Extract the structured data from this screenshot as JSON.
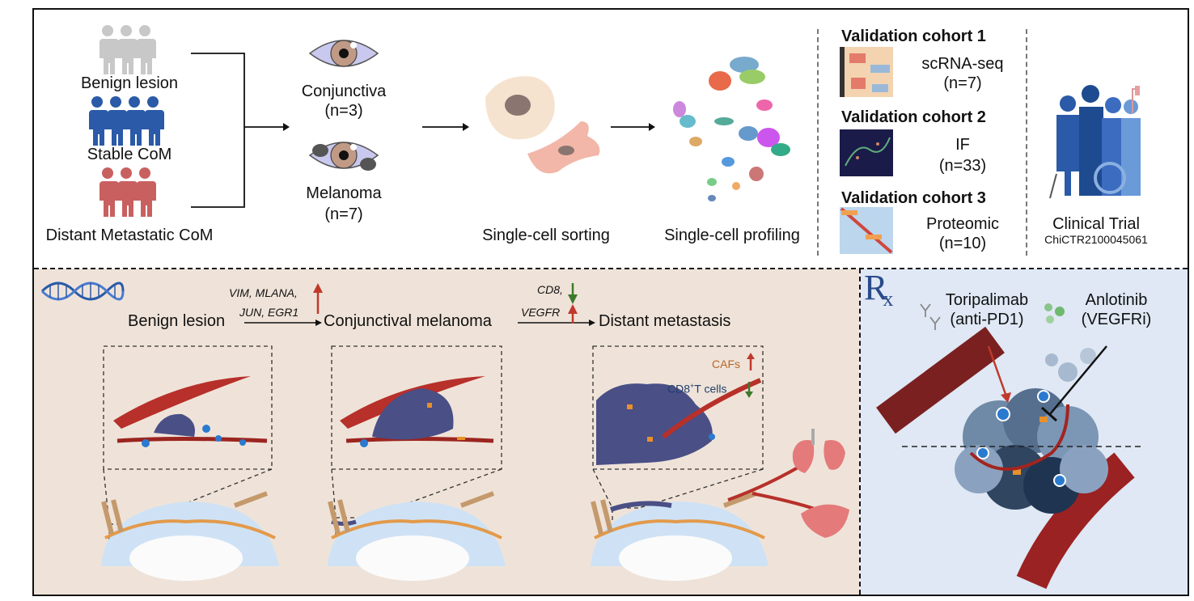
{
  "top": {
    "groups": [
      {
        "label": "Benign lesion",
        "color": "#c8c8c8"
      },
      {
        "label": "Stable CoM",
        "color": "#2a5aa8"
      },
      {
        "label": "Distant Metastatic CoM",
        "color": "#c96060"
      }
    ],
    "samples": [
      {
        "label": "Conjunctiva",
        "n": "(n=3)"
      },
      {
        "label": "Melanoma",
        "n": "(n=7)"
      }
    ],
    "steps": {
      "sorting": "Single-cell sorting",
      "profiling": "Single-cell profiling"
    },
    "validation": [
      {
        "title": "Validation cohort 1",
        "method": "scRNA-seq",
        "n": "(n=7)",
        "thumb": "heatmap-thumbnail"
      },
      {
        "title": "Validation cohort 2",
        "method": "IF",
        "n": "(n=33)",
        "thumb": "immunofluorescence-thumbnail"
      },
      {
        "title": "Validation cohort 3",
        "method": "Proteomic",
        "n": "(n=10)",
        "thumb": "correlation-matrix-thumbnail"
      }
    ],
    "clinical": {
      "label": "Clinical Trial",
      "id": "ChiCTR2100045061"
    }
  },
  "bottom_left": {
    "stages": [
      "Benign lesion",
      "Conjunctival melanoma",
      "Distant metastasis"
    ],
    "transition1": {
      "line1": "VIM, MLANA,",
      "line2": "JUN, EGR1"
    },
    "transition2": {
      "line1": "CD8,",
      "line2": "VEGFR"
    },
    "legend": {
      "cafs": "CAFs",
      "cd8_prefix": "CD8",
      "cd8_sup": "+",
      "cd8_suffix": "T cells"
    }
  },
  "bottom_right": {
    "rx_symbol": "R",
    "rx_sub": "x",
    "drug1": {
      "name": "Toripalimab",
      "target": "(anti-PD1)"
    },
    "drug2": {
      "name": "Anlotinib",
      "target": "(VEGFRi)"
    }
  },
  "colors": {
    "up_arrow": "#c0392b",
    "down_arrow": "#3c7a2a",
    "cafs_text": "#b8662a",
    "cd8_text": "#1f3f6b",
    "tumor": "#4a4f86",
    "vessel": "#a3241f"
  }
}
